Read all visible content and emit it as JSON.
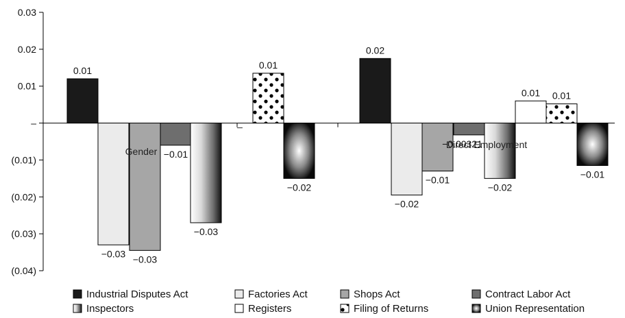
{
  "chart_data": {
    "type": "bar",
    "title": "",
    "xlabel": "",
    "ylabel": "",
    "ylim": [
      -0.04,
      0.03
    ],
    "yticks": [
      {
        "value": 0.03,
        "label": "0.03"
      },
      {
        "value": 0.02,
        "label": "0.02"
      },
      {
        "value": 0.01,
        "label": "0.01"
      },
      {
        "value": 0,
        "label": "–"
      },
      {
        "value": -0.01,
        "label": "(0.01)"
      },
      {
        "value": -0.02,
        "label": "(0.02)"
      },
      {
        "value": -0.03,
        "label": "(0.03)"
      },
      {
        "value": -0.04,
        "label": "(0.04)"
      }
    ],
    "groups": [
      "Gender",
      "–",
      "Direct Employment"
    ],
    "legend_position": "bottom",
    "series": [
      {
        "name": "Industrial Disputes Act",
        "pattern": "black",
        "values": [
          0.012,
          null,
          0.0175
        ],
        "labels": [
          "0.01",
          "",
          "0.02"
        ]
      },
      {
        "name": "Factories Act",
        "pattern": "light",
        "values": [
          -0.033,
          null,
          -0.0195
        ],
        "labels": [
          "−0.03",
          "",
          "−0.02"
        ]
      },
      {
        "name": "Shops Act",
        "pattern": "gray",
        "values": [
          -0.0345,
          null,
          -0.013
        ],
        "labels": [
          "−0.03",
          "",
          "−0.01"
        ]
      },
      {
        "name": "Contract Labor Act",
        "pattern": "dark",
        "values": [
          -0.006,
          null,
          -0.00321
        ],
        "labels": [
          "−0.01",
          "",
          "−0.00321"
        ]
      },
      {
        "name": "Inspectors",
        "pattern": "hgrad",
        "values": [
          -0.027,
          null,
          -0.015
        ],
        "labels": [
          "−0.03",
          "",
          "−0.02"
        ]
      },
      {
        "name": "Registers",
        "pattern": "white",
        "values": [
          null,
          null,
          0.006
        ],
        "labels": [
          "",
          "",
          "0.01"
        ]
      },
      {
        "name": "Filing of Returns",
        "pattern": "dots",
        "values": [
          null,
          0.0135,
          0.0052
        ],
        "labels": [
          "",
          "0.01",
          "0.01"
        ]
      },
      {
        "name": "Union Representation",
        "pattern": "radial",
        "values": [
          null,
          -0.015,
          -0.0115
        ],
        "labels": [
          "",
          "−0.02",
          "−0.01"
        ]
      }
    ]
  }
}
